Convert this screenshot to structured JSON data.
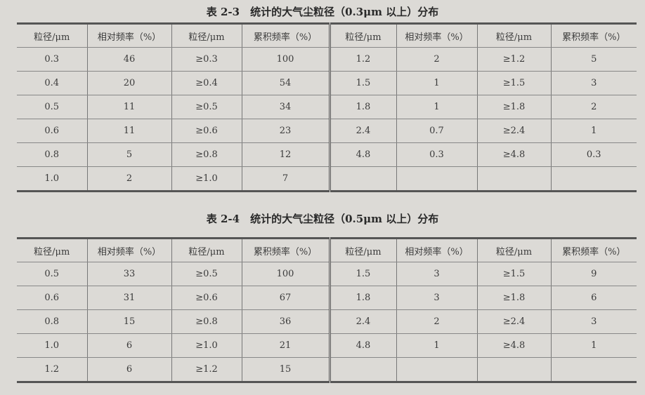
{
  "tables": [
    {
      "title": "表 2-3　统计的大气尘粒径（0.3μm 以上）分布",
      "headers": [
        "粒径/μm",
        "相对频率（%）",
        "粒径/μm",
        "累积频率（%）",
        "粒径/μm",
        "相对频率（%）",
        "粒径/μm",
        "累积频率（%）"
      ],
      "rows": [
        [
          "0.3",
          "46",
          "≥0.3",
          "100",
          "1.2",
          "2",
          "≥1.2",
          "5"
        ],
        [
          "0.4",
          "20",
          "≥0.4",
          "54",
          "1.5",
          "1",
          "≥1.5",
          "3"
        ],
        [
          "0.5",
          "11",
          "≥0.5",
          "34",
          "1.8",
          "1",
          "≥1.8",
          "2"
        ],
        [
          "0.6",
          "11",
          "≥0.6",
          "23",
          "2.4",
          "0.7",
          "≥2.4",
          "1"
        ],
        [
          "0.8",
          "5",
          "≥0.8",
          "12",
          "4.8",
          "0.3",
          "≥4.8",
          "0.3"
        ],
        [
          "1.0",
          "2",
          "≥1.0",
          "7",
          "",
          "",
          "",
          ""
        ]
      ]
    },
    {
      "title": "表 2-4　统计的大气尘粒径（0.5μm 以上）分布",
      "headers": [
        "粒径/μm",
        "相对频率（%）",
        "粒径/μm",
        "累积频率（%）",
        "粒径/μm",
        "相对频率（%）",
        "粒径/μm",
        "累积频率（%）"
      ],
      "rows": [
        [
          "0.5",
          "33",
          "≥0.5",
          "100",
          "1.5",
          "3",
          "≥1.5",
          "9"
        ],
        [
          "0.6",
          "31",
          "≥0.6",
          "67",
          "1.8",
          "3",
          "≥1.8",
          "6"
        ],
        [
          "0.8",
          "15",
          "≥0.8",
          "36",
          "2.4",
          "2",
          "≥2.4",
          "3"
        ],
        [
          "1.0",
          "6",
          "≥1.0",
          "21",
          "4.8",
          "1",
          "≥4.8",
          "1"
        ],
        [
          "1.2",
          "6",
          "≥1.2",
          "15",
          "",
          "",
          "",
          ""
        ]
      ]
    }
  ]
}
